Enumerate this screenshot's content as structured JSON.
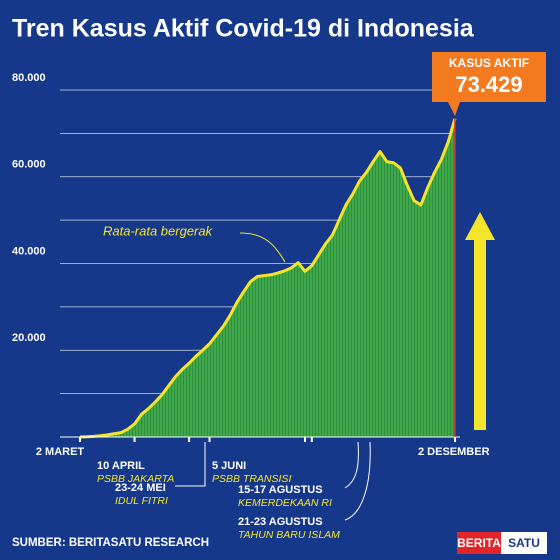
{
  "chart_data": {
    "type": "area",
    "title": "Tren Kasus Aktif Covid-19 di Indonesia",
    "categories": [
      "2 MARET",
      null,
      null,
      null,
      null,
      null,
      null,
      null,
      "10 APRIL",
      null,
      null,
      null,
      null,
      null,
      null,
      null,
      "23-24 MEI",
      null,
      null,
      "5 JUNI",
      null,
      null,
      null,
      null,
      null,
      null,
      null,
      null,
      null,
      null,
      null,
      null,
      null,
      "15-17 AGUSTUS",
      "21-23 AGUSTUS",
      null,
      null,
      null,
      null,
      null,
      null,
      null,
      null,
      null,
      null,
      null,
      null,
      null,
      null,
      null,
      null,
      null,
      null,
      null,
      null,
      "2 DESEMBER"
    ],
    "series": [
      {
        "name": "Rata-rata bergerak",
        "color": "#f5e52a",
        "fill": "#3ea84a",
        "values": [
          0,
          50,
          150,
          300,
          500,
          750,
          1000,
          1800,
          3000,
          5200,
          6500,
          8000,
          9700,
          11800,
          13900,
          15600,
          17000,
          18600,
          20000,
          21500,
          23500,
          25500,
          28000,
          31000,
          33500,
          35800,
          37000,
          37200,
          37400,
          37800,
          38300,
          39000,
          40200,
          38200,
          39500,
          42000,
          44500,
          46500,
          50000,
          53500,
          56000,
          59000,
          61000,
          63500,
          65800,
          63500,
          63200,
          62000,
          58000,
          54500,
          53500,
          57500,
          61000,
          64000,
          68000,
          73429
        ]
      }
    ],
    "ylim": [
      0,
      80000
    ],
    "yticks": [
      {
        "value": 20000,
        "label": "20.000"
      },
      {
        "value": 40000,
        "label": "40.000"
      },
      {
        "value": 60000,
        "label": "60.000"
      },
      {
        "value": 80000,
        "label": "80.000"
      }
    ],
    "minor_grid": [
      10000,
      30000,
      50000,
      70000
    ],
    "grid": true,
    "annotations": [
      {
        "date": "10 APRIL",
        "note": "PSBB JAKARTA"
      },
      {
        "date": "23-24 MEI",
        "note": "IDUL FITRI"
      },
      {
        "date": "5 JUNI",
        "note": "PSBB TRANSISI"
      },
      {
        "date": "15-17 AGUSTUS",
        "note": "KEMERDEKAAN RI"
      },
      {
        "date": "21-23 AGUSTUS",
        "note": "TAHUN BARU ISLAM"
      }
    ],
    "callout": {
      "title": "KASUS AKTIF",
      "value_label": "73.429"
    },
    "source": "SUMBER: BERITASATU RESEARCH",
    "logo": [
      "BERITA",
      "SATU"
    ]
  }
}
